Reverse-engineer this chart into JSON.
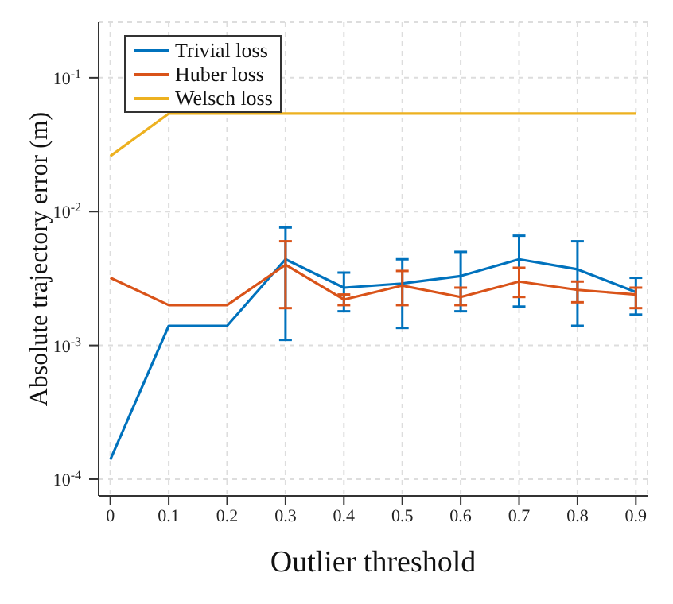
{
  "chart_data": {
    "type": "line",
    "xlabel": "Outlier threshold",
    "ylabel": "Absolute trajectory error (m)",
    "x": [
      0,
      0.1,
      0.2,
      0.3,
      0.4,
      0.5,
      0.6,
      0.7,
      0.8,
      0.9
    ],
    "xlim": [
      -0.02,
      0.92
    ],
    "xticks": [
      0,
      0.1,
      0.2,
      0.3,
      0.4,
      0.5,
      0.6,
      0.7,
      0.8,
      0.9
    ],
    "log": "y",
    "ylim": [
      7.5e-05,
      0.26
    ],
    "yticks": [
      {
        "value": 0.0001,
        "label": "10$^{-4}$"
      },
      {
        "value": 0.001,
        "label": "10$^{-3}$"
      },
      {
        "value": 0.01,
        "label": "10$^{-2}$"
      },
      {
        "value": 0.1,
        "label": "10$^{-1}$"
      }
    ],
    "grid": true,
    "legend": "top left",
    "series": [
      {
        "name": "Trivial loss",
        "color": "#0072bd",
        "values": [
          0.00014,
          0.0014,
          0.0014,
          0.0044,
          0.0027,
          0.0029,
          0.0033,
          0.0044,
          0.0037,
          0.0025
        ],
        "errors": [
          null,
          null,
          null,
          [
            0.0011,
            0.0076
          ],
          [
            0.0018,
            0.0035
          ],
          [
            0.00135,
            0.0044
          ],
          [
            0.0018,
            0.005
          ],
          [
            0.00195,
            0.0066
          ],
          [
            0.0014,
            0.006
          ],
          [
            0.0017,
            0.0032
          ]
        ]
      },
      {
        "name": "Huber loss",
        "color": "#d95319",
        "values": [
          0.0032,
          0.002,
          0.002,
          0.004,
          0.0022,
          0.0028,
          0.0023,
          0.003,
          0.0026,
          0.0024
        ],
        "errors": [
          null,
          null,
          null,
          [
            0.0019,
            0.006
          ],
          [
            0.002,
            0.0024
          ],
          [
            0.002,
            0.0036
          ],
          [
            0.002,
            0.0027
          ],
          [
            0.0023,
            0.0038
          ],
          [
            0.0021,
            0.003
          ],
          [
            0.0019,
            0.0027
          ]
        ]
      },
      {
        "name": "Welsch loss",
        "color": "#edb120",
        "values": [
          0.026,
          0.054,
          0.054,
          0.054,
          0.054,
          0.054,
          0.054,
          0.054,
          0.054,
          0.054
        ]
      }
    ]
  }
}
